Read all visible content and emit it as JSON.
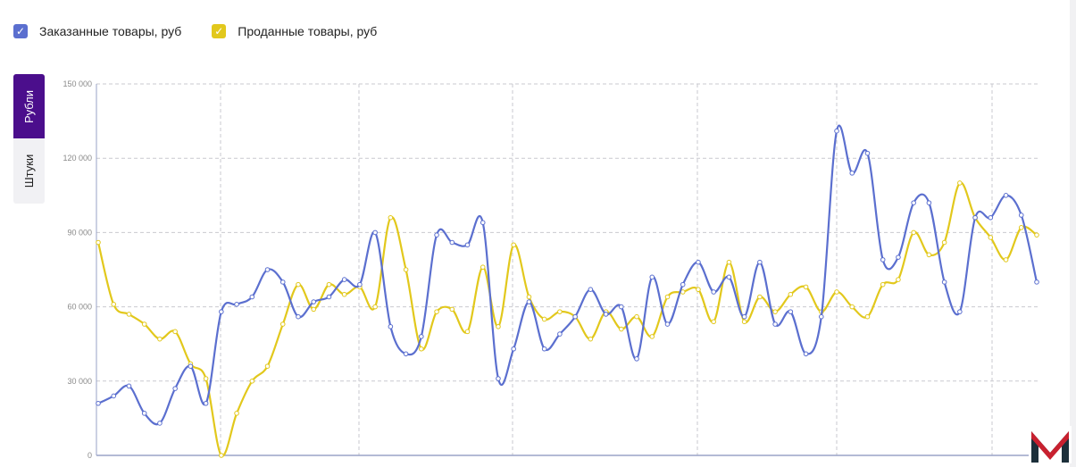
{
  "legend": [
    {
      "label": "Заказанные товары, руб",
      "color": "#5b6fcf",
      "check": "✓"
    },
    {
      "label": "Проданные товары, руб",
      "color": "#e2c81c",
      "check": "✓"
    }
  ],
  "unit_tabs": {
    "active": "Рубли",
    "inactive": "Штуки"
  },
  "colors": {
    "accent": "#4b0e8c",
    "ordered": "#5b6fcf",
    "sold": "#e2c81c",
    "logo_dark": "#1c2f3a",
    "logo_red": "#c8202f"
  },
  "chart_data": {
    "type": "line",
    "ylim": [
      0,
      150000
    ],
    "y_ticks": [
      0,
      30000,
      60000,
      90000,
      120000,
      150000
    ],
    "y_tick_labels": [
      "0",
      "30 000",
      "60 000",
      "90 000",
      "120 000",
      "150 000"
    ],
    "grid": true,
    "legend_position": "top-left",
    "series": [
      {
        "name": "Заказанные товары, руб",
        "color": "#5b6fcf",
        "values": [
          21000,
          24000,
          28000,
          17000,
          13000,
          27000,
          36000,
          21000,
          58000,
          61000,
          64000,
          75000,
          70000,
          56000,
          62000,
          64000,
          71000,
          69000,
          90000,
          52000,
          41000,
          48000,
          89000,
          86000,
          85000,
          94000,
          31000,
          43000,
          62000,
          43000,
          49000,
          56000,
          67000,
          57000,
          60000,
          39000,
          72000,
          53000,
          69000,
          78000,
          66000,
          72000,
          56000,
          78000,
          53000,
          58000,
          41000,
          56000,
          131000,
          114000,
          122000,
          79000,
          80000,
          102000,
          102000,
          70000,
          58000,
          96000,
          96000,
          105000,
          97000,
          70000
        ]
      },
      {
        "name": "Проданные товары, руб",
        "color": "#e2c81c",
        "values": [
          86000,
          61000,
          57000,
          53000,
          47000,
          50000,
          37000,
          31000,
          0,
          17000,
          30000,
          36000,
          53000,
          69000,
          59000,
          69000,
          65000,
          68000,
          60000,
          96000,
          75000,
          43000,
          58000,
          59000,
          50000,
          76000,
          52000,
          85000,
          64000,
          55000,
          58000,
          56000,
          47000,
          58000,
          51000,
          56000,
          48000,
          64000,
          66000,
          67000,
          54000,
          78000,
          54000,
          64000,
          58000,
          65000,
          68000,
          58000,
          66000,
          60000,
          56000,
          69000,
          71000,
          90000,
          81000,
          86000,
          110000,
          96000,
          88000,
          79000,
          92000,
          89000
        ]
      }
    ]
  }
}
